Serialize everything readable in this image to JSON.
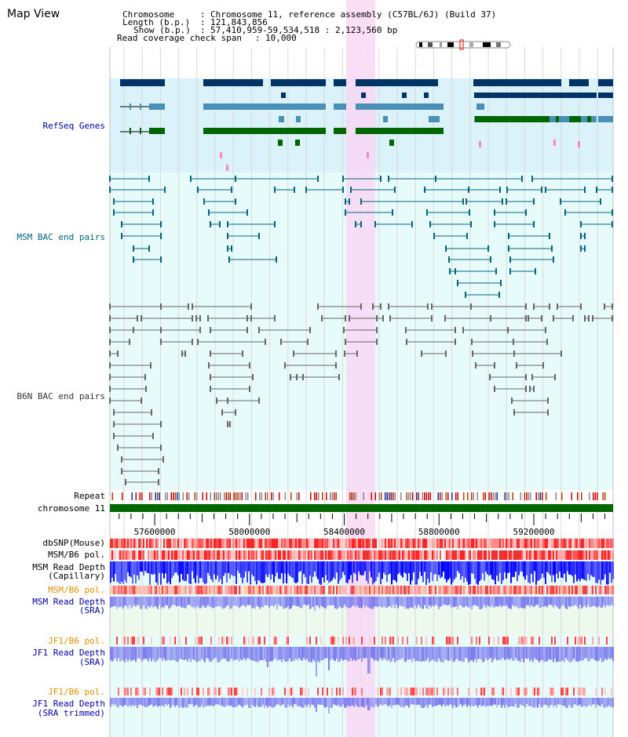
{
  "map_title": "Map View",
  "header": {
    "chromosome_label": "Chromosome",
    "chromosome_value": "Chromosome 11, reference assembly (C57BL/6J) (Build 37)",
    "length_label": "Length (b.p.)",
    "length_value": "121,843,856",
    "show_label": "Show (b.p.)",
    "show_value": "57,410,959-59,534,518 : 2,123,560 bp",
    "coverage_label": "Read coverage check span",
    "coverage_value": "10,000"
  },
  "tracks": {
    "refseq": "RefSeq Genes",
    "msm_bac": "MSM BAC end pairs",
    "b6n_bac": "B6N BAC end pairs",
    "repeat": "Repeat",
    "chromosome": "chromosome 11",
    "dbsnp": "dbSNP(Mouse)",
    "msm_b6_pol_1": "MSM/B6 pol.",
    "msm_read_depth_cap_1": "MSM Read Depth",
    "msm_read_depth_cap_2": "(Capillary)",
    "msm_b6_pol_2": "MSM/B6 pol.",
    "msm_read_depth_sra_1": "MSM Read Depth",
    "msm_read_depth_sra_2": "(SRA)",
    "jf1_b6_pol_1": "JF1/B6 pol.",
    "jf1_read_depth_1": "JF1 Read Depth",
    "jf1_read_depth_2": "(SRA)",
    "jf1_b6_pol_2": "JF1/B6 pol.",
    "jf1_read_depth_t_1": "JF1 Read Depth",
    "jf1_read_depth_t_2": "(SRA trimmed)"
  },
  "axis": {
    "ticks": [
      "57600000",
      "58000000",
      "58400000",
      "58800000",
      "59200000"
    ],
    "range": [
      57410959,
      59534518
    ]
  },
  "colors": {
    "refseq_bg": "#dcf2fa",
    "track_bg": "#e8fbfb",
    "highlight": "#f8d8f4",
    "gene_dark": "#003366",
    "gene_mid": "#4a8fb5",
    "gene_green": "#006600",
    "bac_teal": "#006680",
    "bac_gray": "#666666",
    "chromosome_bar": "#006600",
    "depth_blue": "#0000ff",
    "depth_violet": "#7a7aee"
  }
}
